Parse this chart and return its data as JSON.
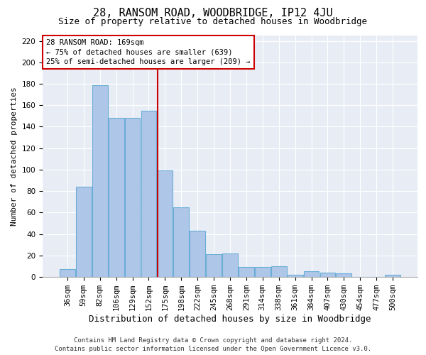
{
  "title1": "28, RANSOM ROAD, WOODBRIDGE, IP12 4JU",
  "title2": "Size of property relative to detached houses in Woodbridge",
  "xlabel": "Distribution of detached houses by size in Woodbridge",
  "ylabel": "Number of detached properties",
  "bin_labels": [
    "36sqm",
    "59sqm",
    "82sqm",
    "106sqm",
    "129sqm",
    "152sqm",
    "175sqm",
    "198sqm",
    "222sqm",
    "245sqm",
    "268sqm",
    "291sqm",
    "314sqm",
    "338sqm",
    "361sqm",
    "384sqm",
    "407sqm",
    "430sqm",
    "454sqm",
    "477sqm",
    "500sqm"
  ],
  "bar_heights": [
    7,
    84,
    179,
    148,
    148,
    155,
    99,
    65,
    43,
    21,
    22,
    9,
    9,
    10,
    2,
    5,
    4,
    3,
    0,
    0,
    2
  ],
  "bar_color": "#aec6e8",
  "bar_edgecolor": "#6aaed6",
  "bar_linewidth": 0.8,
  "vline_x": 5.55,
  "vline_color": "#cc0000",
  "annotation_fontsize": 7.5,
  "annotation_box_color": "#cc0000",
  "background_color": "#e8edf5",
  "grid_color": "#ffffff",
  "ylim": [
    0,
    225
  ],
  "yticks": [
    0,
    20,
    40,
    60,
    80,
    100,
    120,
    140,
    160,
    180,
    200,
    220
  ],
  "footer1": "Contains HM Land Registry data © Crown copyright and database right 2024.",
  "footer2": "Contains public sector information licensed under the Open Government Licence v3.0.",
  "title1_fontsize": 11,
  "title2_fontsize": 9,
  "xlabel_fontsize": 9,
  "ylabel_fontsize": 8,
  "tick_fontsize": 7.5,
  "footer_fontsize": 6.5
}
